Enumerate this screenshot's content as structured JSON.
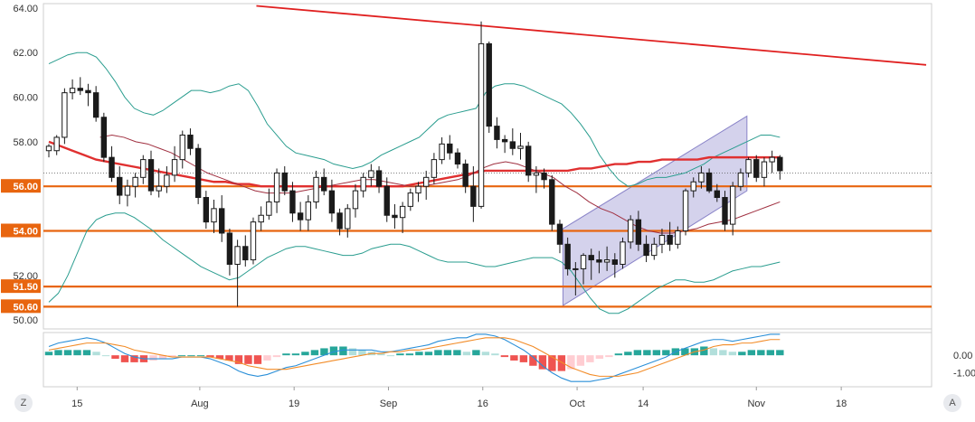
{
  "colors": {
    "up_body": "#ffffff",
    "down_body": "#1a1a1a",
    "wick": "#1a1a1a",
    "horizontal_level": "#e8650f",
    "level_label_bg": "#e8650f",
    "trendline": "#e02020",
    "sma_thick": "#e03030",
    "sma_thin": "#a03040",
    "bollinger": "#2a9d8f",
    "channel_fill": "#b8b4e0",
    "channel_edge": "#8a84c8",
    "macd_line": "#2a8fd8",
    "signal_line": "#f28c28",
    "hist_pos_strong": "#26a69a",
    "hist_pos_weak": "#b2dfdb",
    "hist_neg_strong": "#ef5350",
    "hist_neg_weak": "#ffcdd2",
    "axis_text": "#333333",
    "grid": "#e6e6e6"
  },
  "controls": {
    "left_button": "Z",
    "right_button": "A"
  },
  "chart_data": [
    {
      "type": "candlestick",
      "y_ticks": [
        "64.00",
        "62.00",
        "60.00",
        "58.00",
        "52.00",
        "50.00"
      ],
      "ylim": [
        49.6,
        64.2
      ],
      "x_ticks": [
        {
          "label": "15",
          "index": 3
        },
        {
          "label": "Aug",
          "index": 16
        },
        {
          "label": "19",
          "index": 26
        },
        {
          "label": "Sep",
          "index": 36
        },
        {
          "label": "16",
          "index": 46
        },
        {
          "label": "Oct",
          "index": 56
        },
        {
          "label": "14",
          "index": 63
        },
        {
          "label": "Nov",
          "index": 75
        },
        {
          "label": "18",
          "index": 84
        }
      ],
      "x_range": [
        0,
        93
      ],
      "levels": [
        {
          "value": 56.0,
          "label": "56.00"
        },
        {
          "value": 54.0,
          "label": "54.00"
        },
        {
          "value": 51.5,
          "label": "51.50"
        },
        {
          "value": 50.6,
          "label": "50.60"
        }
      ],
      "reference_line": 56.6,
      "trendline": {
        "from": [
          22,
          64.1
        ],
        "to": [
          93,
          61.45
        ]
      },
      "channel": {
        "lower_from": [
          54.5,
          50.65
        ],
        "lower_to": [
          74,
          55.8
        ],
        "upper_from": [
          54.5,
          54.1
        ],
        "upper_to": [
          74,
          59.15
        ]
      },
      "ohlc": [
        [
          57.6,
          57.9,
          57.3,
          57.8
        ],
        [
          57.6,
          58.3,
          57.4,
          58.2
        ],
        [
          58.2,
          60.4,
          57.9,
          60.2
        ],
        [
          60.2,
          60.8,
          59.9,
          60.4
        ],
        [
          60.4,
          60.9,
          60.1,
          60.3
        ],
        [
          60.3,
          60.6,
          59.6,
          60.2
        ],
        [
          60.2,
          60.5,
          58.9,
          59.1
        ],
        [
          59.1,
          59.3,
          57.1,
          57.3
        ],
        [
          57.3,
          57.8,
          56.2,
          56.4
        ],
        [
          56.4,
          56.9,
          55.2,
          55.6
        ],
        [
          55.6,
          56.3,
          55.1,
          56.0
        ],
        [
          56.0,
          56.6,
          55.5,
          56.4
        ],
        [
          56.4,
          57.4,
          56.1,
          57.2
        ],
        [
          57.2,
          57.6,
          55.6,
          55.8
        ],
        [
          55.8,
          56.8,
          55.5,
          56.0
        ],
        [
          56.0,
          56.9,
          55.7,
          56.5
        ],
        [
          56.5,
          57.8,
          56.2,
          57.2
        ],
        [
          57.2,
          58.5,
          56.8,
          58.3
        ],
        [
          58.3,
          58.6,
          57.4,
          57.7
        ],
        [
          57.7,
          57.9,
          55.2,
          55.5
        ],
        [
          55.5,
          55.8,
          54.1,
          54.4
        ],
        [
          54.4,
          55.4,
          53.9,
          55.0
        ],
        [
          55.0,
          55.6,
          53.5,
          53.9
        ],
        [
          53.9,
          54.1,
          52.0,
          52.5
        ],
        [
          52.5,
          53.6,
          50.6,
          53.3
        ],
        [
          53.3,
          53.8,
          52.4,
          52.7
        ],
        [
          52.7,
          54.6,
          52.5,
          54.4
        ],
        [
          54.4,
          55.1,
          54.0,
          54.7
        ],
        [
          54.7,
          55.9,
          54.5,
          55.3
        ],
        [
          55.3,
          56.8,
          54.8,
          56.6
        ],
        [
          56.6,
          56.9,
          55.6,
          55.8
        ],
        [
          55.8,
          56.2,
          54.4,
          54.8
        ],
        [
          54.8,
          55.3,
          54.0,
          54.5
        ],
        [
          54.5,
          55.6,
          54.0,
          55.3
        ],
        [
          55.3,
          56.7,
          55.0,
          56.4
        ],
        [
          56.4,
          56.8,
          55.6,
          55.8
        ]
      ],
      "ohlc_note_start_index": 0,
      "ohlc_b": [
        [
          55.8,
          56.3,
          54.4,
          54.8
        ],
        [
          54.8,
          55.0,
          53.8,
          54.1
        ],
        [
          54.1,
          55.2,
          53.7,
          55.0
        ],
        [
          55.0,
          56.1,
          54.6,
          55.8
        ],
        [
          55.8,
          56.6,
          55.5,
          56.4
        ],
        [
          56.4,
          57.0,
          56.0,
          56.7
        ],
        [
          56.7,
          56.9,
          55.7,
          56.0
        ],
        [
          56.0,
          56.4,
          54.4,
          54.7
        ],
        [
          54.7,
          55.2,
          54.1,
          54.6
        ],
        [
          54.6,
          55.3,
          53.9,
          55.1
        ],
        [
          55.1,
          55.9,
          54.9,
          55.7
        ],
        [
          55.7,
          56.2,
          55.3,
          56.0
        ],
        [
          56.0,
          56.7,
          55.4,
          56.4
        ],
        [
          56.4,
          57.5,
          56.1,
          57.2
        ],
        [
          57.2,
          58.2,
          57.0,
          57.9
        ],
        [
          57.9,
          58.3,
          57.2,
          57.5
        ],
        [
          57.5,
          57.7,
          56.8,
          57.0
        ],
        [
          57.0,
          57.2,
          55.7,
          56.0
        ],
        [
          56.0,
          56.9,
          54.4,
          55.1
        ],
        [
          55.1,
          63.4,
          55.0,
          62.4
        ],
        [
          62.4,
          62.5,
          58.4,
          58.7
        ],
        [
          58.7,
          59.1,
          57.7,
          58.1
        ],
        [
          58.1,
          58.3,
          57.5,
          58.0
        ],
        [
          58.0,
          58.6,
          57.4,
          57.7
        ],
        [
          57.7,
          58.4,
          57.2,
          57.8
        ],
        [
          57.8,
          58.0,
          56.2,
          56.5
        ],
        [
          56.5,
          56.9,
          55.7,
          56.6
        ],
        [
          56.6,
          56.8,
          55.9,
          56.3
        ],
        [
          56.3,
          56.5,
          54.0,
          54.3
        ],
        [
          54.3,
          54.5,
          53.0,
          53.4
        ],
        [
          53.4,
          53.7,
          52.0,
          52.3
        ],
        [
          52.3,
          52.6,
          51.1,
          52.3
        ]
      ],
      "ohlc_c": [
        [
          52.3,
          53.0,
          51.6,
          52.9
        ],
        [
          52.9,
          53.2,
          51.8,
          52.7
        ],
        [
          52.7,
          53.1,
          52.1,
          52.6
        ],
        [
          52.6,
          53.3,
          52.2,
          52.7
        ],
        [
          52.7,
          53.0,
          51.9,
          52.5
        ],
        [
          52.5,
          53.7,
          52.3,
          53.5
        ],
        [
          53.5,
          54.7,
          53.2,
          54.5
        ],
        [
          54.5,
          54.9,
          53.1,
          53.4
        ],
        [
          53.4,
          53.8,
          52.6,
          52.9
        ],
        [
          52.9,
          53.7,
          52.7,
          53.4
        ],
        [
          53.4,
          54.1,
          53.0,
          53.8
        ],
        [
          53.8,
          54.4,
          53.1,
          53.4
        ],
        [
          53.4,
          54.2,
          53.2,
          54.0
        ],
        [
          54.0,
          55.9,
          53.8,
          55.8
        ],
        [
          55.8,
          56.4,
          55.5,
          56.2
        ],
        [
          56.2,
          56.9,
          55.9,
          56.6
        ],
        [
          56.6,
          56.8,
          55.7,
          55.8
        ],
        [
          55.8,
          56.1,
          55.3,
          55.5
        ],
        [
          55.5,
          55.8,
          54.0,
          54.3
        ],
        [
          54.3,
          56.2,
          53.8,
          56.0
        ],
        [
          56.0,
          56.8,
          55.8,
          56.6
        ],
        [
          56.6,
          57.3,
          56.4,
          57.2
        ],
        [
          57.2,
          57.4,
          56.2,
          56.4
        ],
        [
          56.4,
          57.3,
          56.0,
          57.1
        ],
        [
          57.1,
          57.6,
          56.6,
          57.3
        ],
        [
          57.3,
          57.4,
          56.3,
          56.7
        ]
      ],
      "bollinger_upper": [
        61.5,
        61.7,
        61.9,
        62.0,
        62.0,
        61.8,
        61.3,
        60.7,
        60.0,
        59.5,
        59.3,
        59.2,
        59.4,
        59.7,
        60.0,
        60.3,
        60.3,
        60.2,
        60.3,
        60.5,
        60.6,
        60.3,
        59.6,
        58.8,
        58.3,
        57.8,
        57.5,
        57.4,
        57.3,
        57.2,
        57.0,
        56.9,
        56.8,
        56.9,
        57.1,
        57.4,
        57.6,
        57.8,
        58.0,
        58.2,
        58.6,
        59.0,
        59.2,
        59.3,
        59.4,
        59.5,
        60.2,
        60.5,
        60.6,
        60.6,
        60.5,
        60.3,
        60.1,
        59.9,
        59.7,
        59.3,
        58.8,
        58.2,
        57.4,
        56.8,
        56.3,
        56.0,
        56.1,
        56.3,
        56.4,
        56.4,
        56.5,
        56.6,
        56.8,
        57.0,
        57.3,
        57.5,
        57.7,
        57.9,
        58.1,
        58.3,
        58.3,
        58.2
      ],
      "bollinger_lower": [
        50.8,
        51.2,
        52.0,
        53.0,
        54.0,
        54.5,
        54.7,
        54.8,
        54.8,
        54.6,
        54.3,
        54.0,
        53.6,
        53.3,
        53.0,
        52.7,
        52.4,
        52.2,
        52.0,
        51.8,
        51.9,
        52.2,
        52.5,
        52.8,
        53.0,
        53.2,
        53.3,
        53.3,
        53.2,
        53.1,
        53.0,
        52.9,
        52.9,
        53.0,
        53.2,
        53.3,
        53.4,
        53.4,
        53.3,
        53.1,
        52.9,
        52.7,
        52.6,
        52.6,
        52.6,
        52.5,
        52.4,
        52.4,
        52.5,
        52.6,
        52.7,
        52.8,
        52.8,
        52.8,
        52.6,
        52.2,
        51.6,
        51.0,
        50.5,
        50.3,
        50.3,
        50.5,
        50.8,
        51.1,
        51.4,
        51.6,
        51.8,
        51.8,
        51.7,
        51.7,
        51.8,
        52.0,
        52.2,
        52.3,
        52.4,
        52.4,
        52.5,
        52.6
      ],
      "sma_thick": [
        58.0,
        57.8,
        57.6,
        57.4,
        57.2,
        57.1,
        57.0,
        56.9,
        56.8,
        56.7,
        56.6,
        56.5,
        56.4,
        56.3,
        56.2,
        56.2,
        56.1,
        56.1,
        56.0,
        56.0,
        56.0,
        56.0,
        56.0,
        56.0,
        56.0,
        56.0,
        56.0,
        56.0,
        56.0,
        56.0,
        56.0,
        56.1,
        56.2,
        56.3,
        56.4,
        56.5,
        56.6,
        56.7,
        56.7,
        56.7,
        56.7,
        56.7,
        56.7,
        56.7,
        56.7,
        56.8,
        56.8,
        56.9,
        57.0,
        57.0,
        57.1,
        57.1,
        57.2,
        57.2,
        57.2,
        57.2,
        57.3,
        57.3,
        57.3,
        57.3,
        57.3,
        57.3,
        57.3
      ],
      "sma_thin": [
        58.2,
        58.3,
        58.2,
        58.0,
        57.9,
        57.7,
        57.5,
        57.2,
        56.9,
        56.6,
        56.4,
        56.2,
        56.0,
        55.8,
        55.7,
        55.7,
        55.7,
        55.8,
        55.9,
        56.0,
        56.1,
        56.2,
        56.3,
        56.3,
        56.2,
        56.1,
        56.0,
        56.0,
        56.1,
        56.2,
        56.3,
        56.5,
        56.8,
        57.0,
        57.1,
        57.0,
        56.8,
        56.6,
        56.4,
        56.0,
        55.7,
        55.3,
        55.0,
        54.8,
        54.5,
        54.2,
        54.0,
        53.9,
        53.9,
        54.0,
        54.1,
        54.3,
        54.4,
        54.5,
        54.7,
        54.9,
        55.1,
        55.3
      ]
    },
    {
      "type": "macd",
      "y_ticks": [
        "0.00",
        "-1.00"
      ],
      "ylim": [
        -1.8,
        1.3
      ],
      "macd": [
        0.5,
        0.7,
        0.8,
        0.9,
        1.0,
        0.9,
        0.7,
        0.4,
        0.1,
        -0.1,
        -0.2,
        -0.2,
        -0.2,
        -0.2,
        -0.1,
        -0.1,
        -0.1,
        -0.2,
        -0.4,
        -0.6,
        -0.9,
        -1.1,
        -1.2,
        -1.1,
        -0.9,
        -0.7,
        -0.6,
        -0.4,
        -0.2,
        0.0,
        0.2,
        0.3,
        0.3,
        0.3,
        0.3,
        0.2,
        0.2,
        0.3,
        0.4,
        0.5,
        0.6,
        0.8,
        0.9,
        1.0,
        1.0,
        1.2,
        1.2,
        1.1,
        0.9,
        0.6,
        0.3,
        -0.1,
        -0.6,
        -1.0,
        -1.3,
        -1.5,
        -1.5,
        -1.5,
        -1.4,
        -1.3,
        -1.1,
        -0.9,
        -0.7,
        -0.5,
        -0.3,
        -0.1,
        0.2,
        0.4,
        0.6,
        0.8,
        0.9,
        0.9,
        0.8,
        0.9,
        1.0,
        1.1,
        1.2,
        1.2
      ],
      "signal": [
        0.3,
        0.4,
        0.5,
        0.6,
        0.7,
        0.7,
        0.7,
        0.6,
        0.5,
        0.3,
        0.2,
        0.1,
        0.0,
        -0.1,
        -0.1,
        -0.1,
        -0.1,
        -0.1,
        -0.2,
        -0.3,
        -0.4,
        -0.6,
        -0.7,
        -0.8,
        -0.8,
        -0.8,
        -0.7,
        -0.6,
        -0.5,
        -0.4,
        -0.3,
        -0.2,
        -0.1,
        0.0,
        0.1,
        0.1,
        0.2,
        0.2,
        0.3,
        0.3,
        0.4,
        0.5,
        0.6,
        0.7,
        0.8,
        0.9,
        1.0,
        1.0,
        1.0,
        0.9,
        0.7,
        0.5,
        0.2,
        -0.1,
        -0.4,
        -0.7,
        -0.9,
        -1.1,
        -1.2,
        -1.2,
        -1.2,
        -1.1,
        -1.0,
        -0.8,
        -0.6,
        -0.4,
        -0.2,
        0.0,
        0.2,
        0.3,
        0.5,
        0.6,
        0.6,
        0.7,
        0.7,
        0.8,
        0.9,
        0.9
      ],
      "histogram": [
        0.2,
        0.3,
        0.3,
        0.3,
        0.3,
        0.2,
        0.0,
        -0.2,
        -0.4,
        -0.4,
        -0.4,
        -0.3,
        -0.2,
        -0.1,
        0.0,
        0.0,
        0.0,
        -0.1,
        -0.2,
        -0.3,
        -0.5,
        -0.5,
        -0.5,
        -0.3,
        -0.1,
        0.1,
        0.1,
        0.2,
        0.3,
        0.4,
        0.5,
        0.5,
        0.4,
        0.3,
        0.2,
        0.1,
        0.0,
        0.1,
        0.1,
        0.2,
        0.2,
        0.3,
        0.3,
        0.3,
        0.2,
        0.3,
        0.2,
        0.1,
        -0.1,
        -0.3,
        -0.4,
        -0.6,
        -0.8,
        -0.9,
        -0.9,
        -0.8,
        -0.6,
        -0.4,
        -0.2,
        -0.1,
        0.1,
        0.2,
        0.3,
        0.3,
        0.3,
        0.3,
        0.4,
        0.4,
        0.4,
        0.5,
        0.4,
        0.3,
        0.2,
        0.2,
        0.3,
        0.3,
        0.3,
        0.3
      ]
    }
  ]
}
